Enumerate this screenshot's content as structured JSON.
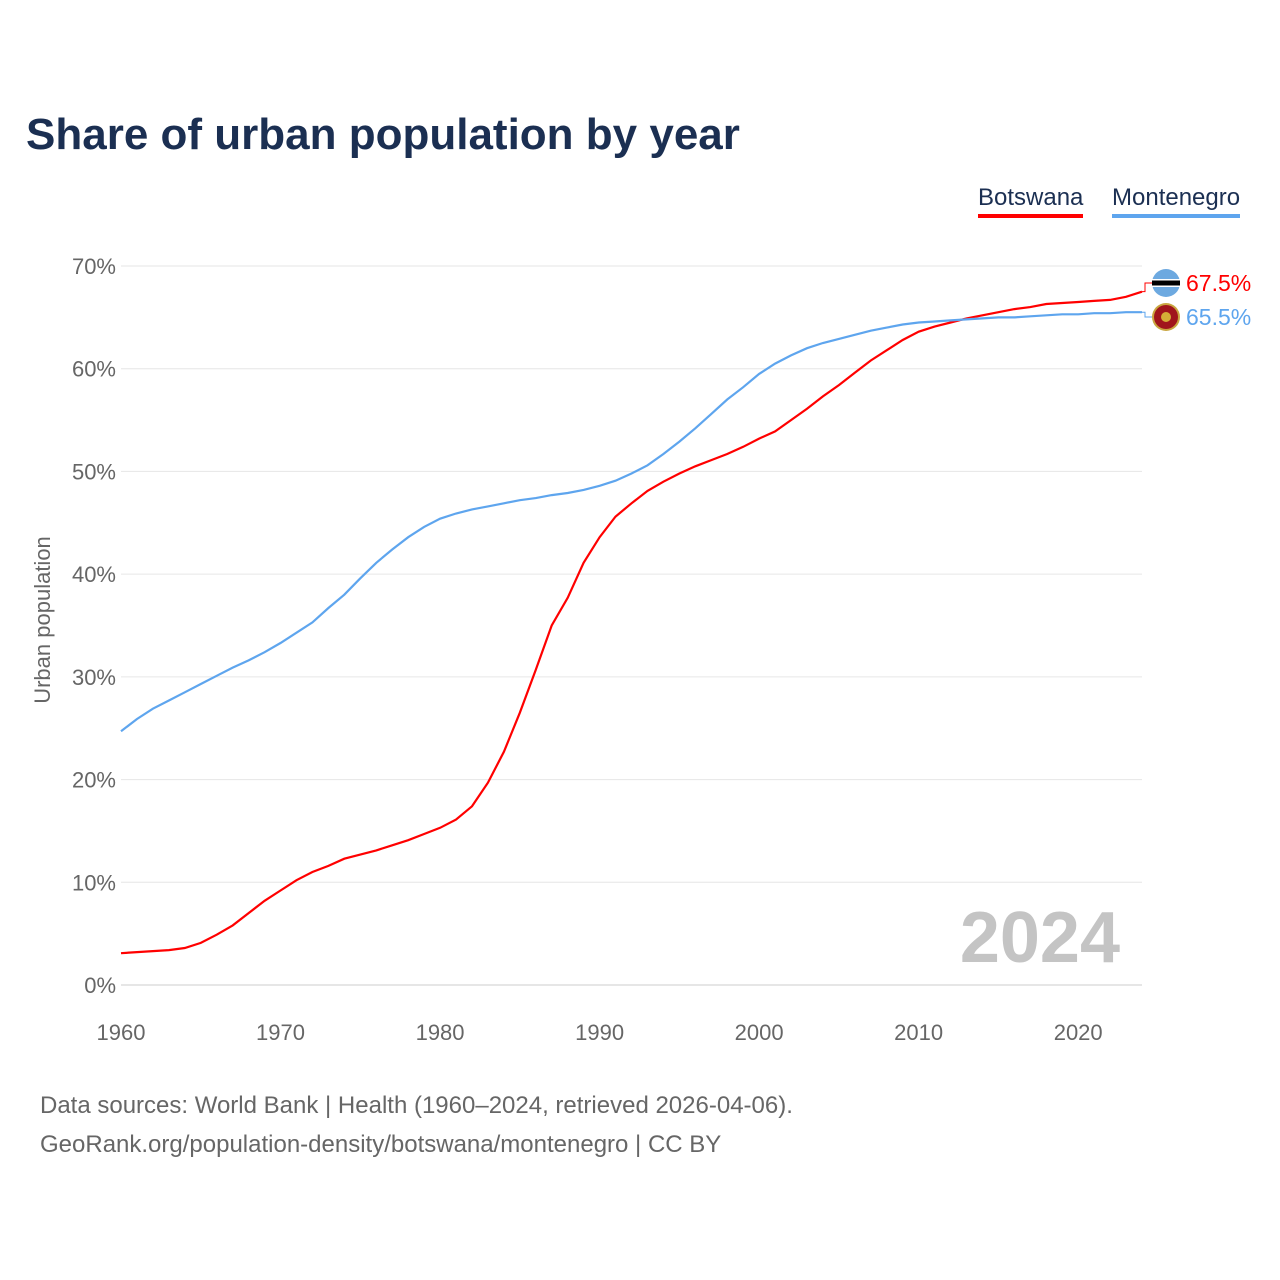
{
  "title": "Share of urban population by year",
  "footer": {
    "line1": "Data sources: World Bank | Health (1960–2024, retrieved 2026-04-06).",
    "line2": "GeoRank.org/population-density/botswana/montenegro | CC BY"
  },
  "chart_data": {
    "type": "line",
    "title": "Share of urban population by year",
    "xlabel": "",
    "ylabel": "Urban population",
    "xlim": [
      1960,
      2024
    ],
    "ylim": [
      0,
      70
    ],
    "x_ticks": [
      "1960",
      "1970",
      "1980",
      "1990",
      "2000",
      "2010",
      "2020"
    ],
    "y_ticks": [
      "0%",
      "10%",
      "20%",
      "30%",
      "40%",
      "50%",
      "60%",
      "70%"
    ],
    "grid": true,
    "legend_placement": "top-right",
    "year_watermark": "2024",
    "x": [
      1960,
      1961,
      1962,
      1963,
      1964,
      1965,
      1966,
      1967,
      1968,
      1969,
      1970,
      1971,
      1972,
      1973,
      1974,
      1975,
      1976,
      1977,
      1978,
      1979,
      1980,
      1981,
      1982,
      1983,
      1984,
      1985,
      1986,
      1987,
      1988,
      1989,
      1990,
      1991,
      1992,
      1993,
      1994,
      1995,
      1996,
      1997,
      1998,
      1999,
      2000,
      2001,
      2002,
      2003,
      2004,
      2005,
      2006,
      2007,
      2008,
      2009,
      2010,
      2011,
      2012,
      2013,
      2014,
      2015,
      2016,
      2017,
      2018,
      2019,
      2020,
      2021,
      2022,
      2023,
      2024
    ],
    "series": [
      {
        "name": "Botswana",
        "color": "#ff0000",
        "end_label": "67.5%",
        "icon": "botswana-flag-icon",
        "values": [
          3.1,
          3.2,
          3.3,
          3.4,
          3.6,
          4.1,
          4.9,
          5.8,
          7.0,
          8.2,
          9.2,
          10.2,
          11.0,
          11.6,
          12.3,
          12.7,
          13.1,
          13.6,
          14.1,
          14.7,
          15.3,
          16.1,
          17.4,
          19.7,
          22.7,
          26.5,
          30.7,
          35.0,
          37.7,
          41.1,
          43.6,
          45.6,
          46.9,
          48.1,
          49.0,
          49.8,
          50.5,
          51.1,
          51.7,
          52.4,
          53.2,
          53.9,
          55.0,
          56.1,
          57.3,
          58.4,
          59.6,
          60.8,
          61.8,
          62.8,
          63.6,
          64.1,
          64.5,
          64.9,
          65.2,
          65.5,
          65.8,
          66.0,
          66.3,
          66.4,
          66.5,
          66.6,
          66.7,
          67.0,
          67.5
        ]
      },
      {
        "name": "Montenegro",
        "color": "#5ea5ee",
        "end_label": "65.5%",
        "icon": "montenegro-flag-icon",
        "values": [
          24.7,
          25.9,
          26.9,
          27.7,
          28.5,
          29.3,
          30.1,
          30.9,
          31.6,
          32.4,
          33.3,
          34.3,
          35.3,
          36.7,
          38.0,
          39.6,
          41.1,
          42.4,
          43.6,
          44.6,
          45.4,
          45.9,
          46.3,
          46.6,
          46.9,
          47.2,
          47.4,
          47.7,
          47.9,
          48.2,
          48.6,
          49.1,
          49.8,
          50.6,
          51.7,
          52.9,
          54.2,
          55.6,
          57.0,
          58.2,
          59.5,
          60.5,
          61.3,
          62.0,
          62.5,
          62.9,
          63.3,
          63.7,
          64.0,
          64.3,
          64.5,
          64.6,
          64.7,
          64.8,
          64.9,
          65.0,
          65.0,
          65.1,
          65.2,
          65.3,
          65.3,
          65.4,
          65.4,
          65.5,
          65.5
        ]
      }
    ]
  }
}
